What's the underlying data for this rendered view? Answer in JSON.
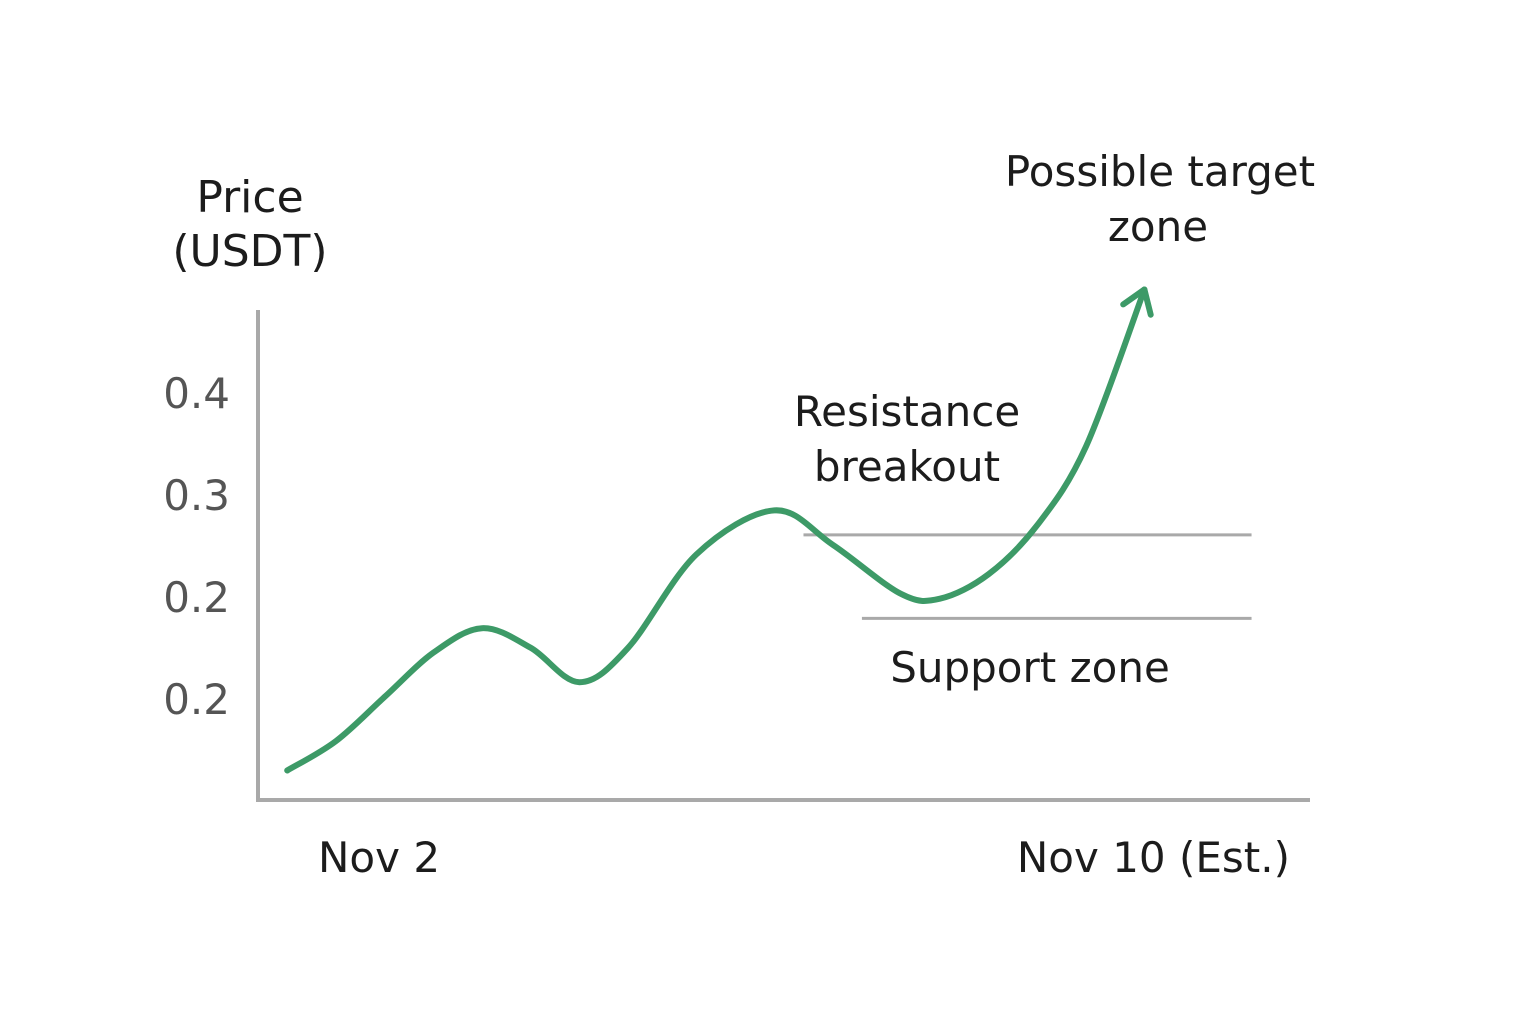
{
  "chart_data": {
    "type": "line",
    "title": "",
    "ylabel_lines": [
      "Price",
      "(USDT)"
    ],
    "xlabel": "",
    "y_tick_labels": [
      "0.4",
      "0.3",
      "0.2",
      "0.2"
    ],
    "x_tick_labels": [
      "Nov 2",
      "Nov 10 (Est.)"
    ],
    "series": [
      {
        "values": [
          0.03,
          0.06,
          0.105,
          0.15,
          0.175,
          0.155,
          0.12,
          0.155,
          0.25,
          0.295,
          0.26,
          0.21,
          0.205,
          0.23,
          0.28,
          0.36,
          0.52
        ]
      }
    ],
    "x_positions": [
      0,
      0.5,
      1,
      1.5,
      2,
      2.5,
      3,
      3.5,
      4.2,
      5,
      5.6,
      6.3,
      6.7,
      7.2,
      7.7,
      8.2,
      8.8
    ],
    "xlim": [
      -0.3,
      10.5
    ],
    "ylim": [
      0.0,
      0.55
    ],
    "resistance_level": 0.27,
    "support_level": 0.185,
    "grid": false,
    "annotations": {
      "target": [
        "Possible target",
        "zone"
      ],
      "resistance": [
        "Resistance",
        "breakout"
      ],
      "support": "Support zone"
    },
    "colors": {
      "line": "#3d9a67",
      "axis": "#a9a9a9",
      "level": "#a9a9a9",
      "text": "#1c1c1c",
      "tick": "#555555"
    }
  }
}
